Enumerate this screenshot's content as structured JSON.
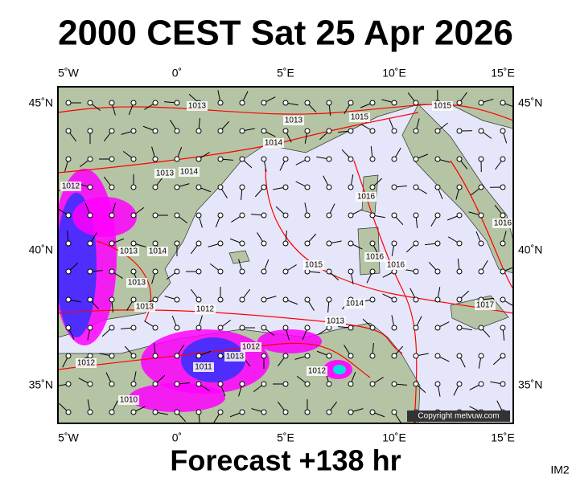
{
  "title": "2000 CEST Sat 25 Apr 2026",
  "lon_labels": [
    "5˚W",
    "0˚",
    "5˚E",
    "10˚E",
    "15˚E"
  ],
  "lat_labels": [
    "45˚N",
    "40˚N",
    "35˚N"
  ],
  "isobar_labels": [
    "1013",
    "1013",
    "1015",
    "1015",
    "1014",
    "1013",
    "1014",
    "1012",
    "1016",
    "1016",
    "1013",
    "1014",
    "1013",
    "1015",
    "1016",
    "1016",
    "1013",
    "1012",
    "1014",
    "1013",
    "1017",
    "1012",
    "1011",
    "1013",
    "1012",
    "1012",
    "1010"
  ],
  "copyright": "Copyright metvuw.com",
  "footer": "Forecast +138 hr",
  "image_id": "IM2"
}
